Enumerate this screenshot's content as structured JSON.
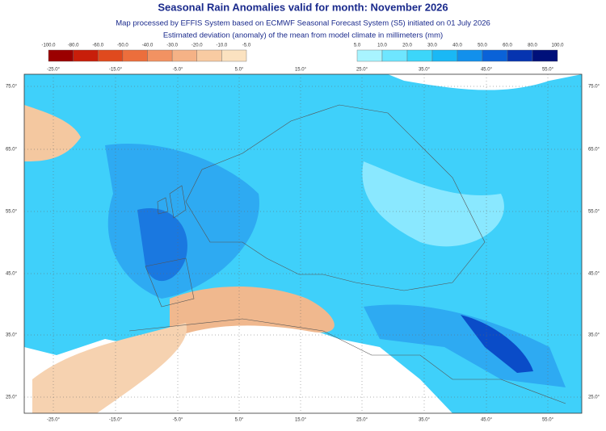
{
  "header": {
    "title": "Seasonal Rain Anomalies valid for month: November 2026",
    "subtitle": [
      "Map processed by EFFIS System based on ECMWF Seasonal Forecast System (S5) initiated on 01 July 2026",
      "Estimated deviation (anomaly) of the mean from model climate in millimeters (mm)"
    ]
  },
  "legend_negative": {
    "labels": [
      "-100.0",
      "-80.0",
      "-60.0",
      "-50.0",
      "-40.0",
      "-30.0",
      "-20.0",
      "-10.0",
      "-5.0"
    ],
    "colors": [
      "#9b0000",
      "#c81e0a",
      "#e04a1e",
      "#ec6e3c",
      "#f29262",
      "#f5b286",
      "#f8cba2",
      "#fbe2c0"
    ]
  },
  "legend_positive": {
    "labels": [
      "5.0",
      "10.0",
      "20.0",
      "30.0",
      "40.0",
      "50.0",
      "60.0",
      "80.0",
      "100.0"
    ],
    "colors": [
      "#a8f4ff",
      "#6ee6ff",
      "#3cd6fa",
      "#1ab8f5",
      "#1290ec",
      "#0a62d8",
      "#0634b0",
      "#00107a"
    ]
  },
  "map": {
    "lon_labels": [
      "-25.0°",
      "-15.0°",
      "-5.0°",
      "5.0°",
      "15.0°",
      "25.0°",
      "35.0°",
      "45.0°",
      "55.0°"
    ],
    "lat_labels": [
      "75.0°",
      "65.0°",
      "55.0°",
      "45.0°",
      "35.0°",
      "25.0°"
    ]
  }
}
